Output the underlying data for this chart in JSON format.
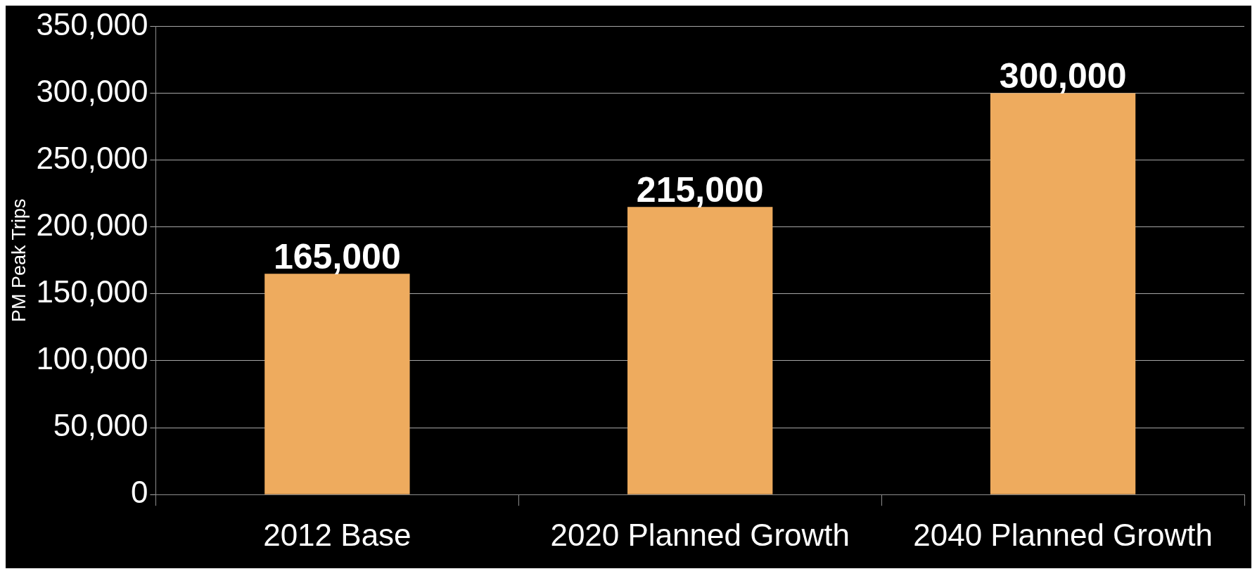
{
  "chart_data": {
    "type": "bar",
    "ylabel": "PM Peak Trips",
    "categories": [
      "2012 Base",
      "2020 Planned Growth",
      "2040 Planned Growth"
    ],
    "values": [
      165000,
      215000,
      300000
    ],
    "value_labels": [
      "165,000",
      "215,000",
      "300,000"
    ],
    "color": "#eeab5e",
    "ylim": [
      0,
      350000
    ],
    "yticks": [
      {
        "value": 0,
        "label": "0"
      },
      {
        "value": 50000,
        "label": "50,000"
      },
      {
        "value": 100000,
        "label": "100,000"
      },
      {
        "value": 150000,
        "label": "150,000"
      },
      {
        "value": 200000,
        "label": "200,000"
      },
      {
        "value": 250000,
        "label": "250,000"
      },
      {
        "value": 300000,
        "label": "300,000"
      },
      {
        "value": 350000,
        "label": "350,000"
      }
    ],
    "grid": "y",
    "legend": false
  }
}
